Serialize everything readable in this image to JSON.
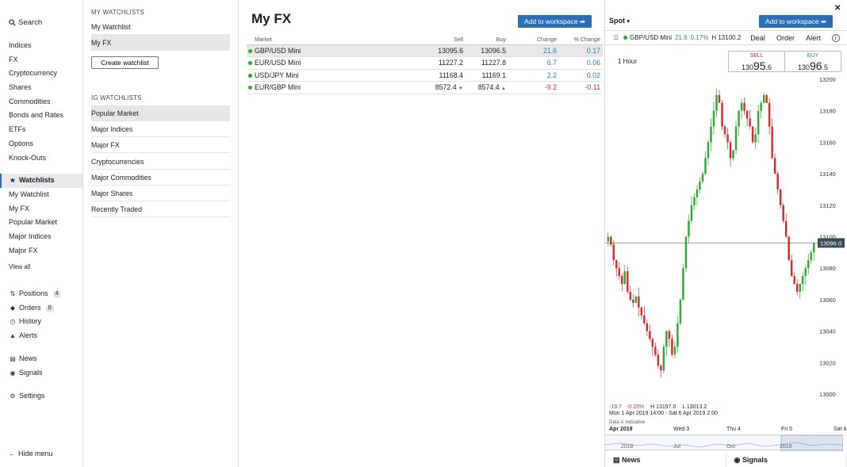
{
  "nav": {
    "search": "Search",
    "markets": [
      "Indices",
      "FX",
      "Cryptocurrency",
      "Shares",
      "Commodities",
      "Bonds and Rates",
      "ETFs",
      "Options",
      "Knock-Outs"
    ],
    "watchlists_label": "Watchlists",
    "watchlists": [
      "My Watchlist",
      "My FX",
      "Popular Market",
      "Major Indices",
      "Major FX"
    ],
    "view_all": "View all",
    "positions": "Positions",
    "positions_count": "4",
    "orders": "Orders",
    "orders_count": "0",
    "history": "History",
    "alerts": "Alerts",
    "news": "News",
    "signals": "Signals",
    "settings": "Settings",
    "hide_menu": "Hide menu"
  },
  "watchlist_panel": {
    "my_header": "MY WATCHLISTS",
    "my_items": [
      "My Watchlist",
      "My FX"
    ],
    "create_button": "Create watchlist",
    "ig_header": "IG WATCHLISTS",
    "ig_items": [
      "Popular Market",
      "Major Indices",
      "Major FX",
      "Cryptocurrencies",
      "Major Commodities",
      "Major Shares",
      "Recently Traded"
    ]
  },
  "main": {
    "title": "My FX",
    "add_button": "Add to workspace",
    "columns": [
      "Market",
      "Sell",
      "Buy",
      "Change",
      "% Change"
    ],
    "rows": [
      {
        "market": "GBP/USD Mini",
        "sell": "13095.6",
        "buy": "13096.5",
        "change": "21.6",
        "pct": "0.17"
      },
      {
        "market": "EUR/USD Mini",
        "sell": "11227.2",
        "buy": "11227.8",
        "change": "6.7",
        "pct": "0.06"
      },
      {
        "market": "USD/JPY Mini",
        "sell": "11168.4",
        "buy": "11169.1",
        "change": "2.2",
        "pct": "0.02"
      },
      {
        "market": "EUR/GBP Mini",
        "sell": "8572.4",
        "buy": "8574.4",
        "change": "-9.2",
        "pct": "-0.11"
      }
    ]
  },
  "right": {
    "spot": "Spot",
    "add_button": "Add to workspace",
    "market": "GBP/USD Mini",
    "change": "21.6",
    "pct": "0.17%",
    "high": "H 13100.2",
    "deal": "Deal",
    "order": "Order",
    "alert": "Alert",
    "interval": "1 Hour",
    "sell_label": "SELL",
    "sell_prefix": "130",
    "sell_big": "95",
    "sell_suffix": ".6",
    "buy_label": "BUY",
    "buy_prefix": "130",
    "buy_big": "96",
    "buy_suffix": ".5",
    "stats_change": "-19.7",
    "stats_pct": "-0.15%",
    "stats_high": "H 13197.0",
    "stats_low": "L 13013.2",
    "range": "Mon 1 Apr 2019 14:00 - Sat 6 Apr 2019 2:00",
    "indicative": "Data is indicative",
    "timeline": [
      "Apr 2019",
      "Wed 3",
      "Thu 4",
      "Fri 5",
      "Sat 6"
    ],
    "navigator": [
      "2018",
      "Jul",
      "Oct",
      "2019"
    ],
    "bottom_tabs": [
      "News",
      "Signals"
    ],
    "price_tag": "13096.0"
  },
  "colors": {
    "accent": "#2c6eb5",
    "up": "#2fa832",
    "down": "#d62b2b",
    "positive_text": "#2c7bc4"
  },
  "chart_data": {
    "type": "candlestick",
    "ylim": [
      13000,
      13200
    ],
    "yticks": [
      13200,
      13180,
      13160,
      13140,
      13120,
      13100,
      13080,
      13060,
      13040,
      13020,
      13000
    ],
    "current": 13096.0,
    "closes": [
      13100,
      13095,
      13085,
      13080,
      13075,
      13070,
      13078,
      13065,
      13060,
      13058,
      13062,
      13055,
      13050,
      13045,
      13040,
      13035,
      13030,
      13025,
      13018,
      13015,
      13030,
      13040,
      13035,
      13025,
      13030,
      13045,
      13060,
      13080,
      13100,
      13110,
      13120,
      13125,
      13130,
      13135,
      13140,
      13150,
      13160,
      13170,
      13180,
      13190,
      13185,
      13170,
      13165,
      13160,
      13150,
      13155,
      13170,
      13180,
      13185,
      13180,
      13175,
      13170,
      13160,
      13165,
      13180,
      13185,
      13190,
      13185,
      13170,
      13150,
      13140,
      13130,
      13120,
      13110,
      13100,
      13085,
      13075,
      13070,
      13065,
      13070,
      13075,
      13080,
      13085,
      13090,
      13096
    ]
  }
}
